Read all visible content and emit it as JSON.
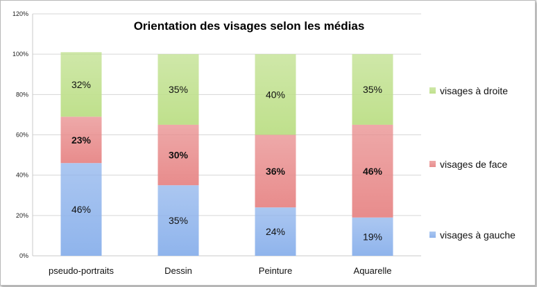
{
  "chart_data": {
    "type": "bar",
    "stacked": true,
    "title": "Orientation des visages selon les médias",
    "categories": [
      "pseudo-portraits",
      "Dessin",
      "Peinture",
      "Aquarelle"
    ],
    "series": [
      {
        "name": "visages à gauche",
        "values": [
          46,
          35,
          24,
          19
        ],
        "labels": [
          "46%",
          "35%",
          "24%",
          "19%"
        ],
        "color": "#8fb4ec",
        "bold": false
      },
      {
        "name": "visages de face",
        "values": [
          23,
          30,
          36,
          46
        ],
        "labels": [
          "23%",
          "30%",
          "36%",
          "46%"
        ],
        "color": "#e88c8c",
        "bold": true
      },
      {
        "name": "visages à droite",
        "values": [
          32,
          35,
          40,
          35
        ],
        "labels": [
          "32%",
          "35%",
          "40%",
          "35%"
        ],
        "color": "#bfe08c",
        "bold": false
      }
    ],
    "ylim": [
      0,
      120
    ],
    "yticks": [
      "0%",
      "20%",
      "40%",
      "60%",
      "80%",
      "100%",
      "120%"
    ],
    "grid": true,
    "legend_position": "right"
  }
}
